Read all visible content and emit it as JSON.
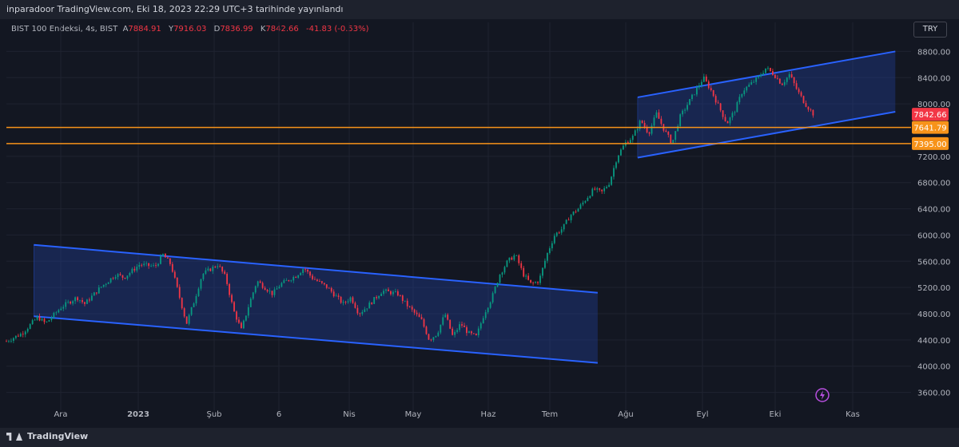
{
  "header": {
    "publish_text": "inparadoor TradingView.com, Eki 18, 2023 22:29 UTC+3 tarihinde yayınlandı"
  },
  "legend": {
    "symbol": "BIST 100 Endeksi, 4s, BIST",
    "open_label": "A",
    "open": "7884.91",
    "high_label": "Y",
    "high": "7916.03",
    "low_label": "D",
    "low": "7836.99",
    "close_label": "K",
    "close": "7842.66",
    "change": "-41.83 (-0.53%)"
  },
  "currency_button": "TRY",
  "footer": {
    "brand": "TradingView"
  },
  "colors": {
    "background": "#131722",
    "channel_line": "#2962ff",
    "channel_fill": "#1e3a8a",
    "level_line": "#f7931a",
    "up": "#089981",
    "down": "#f23645"
  },
  "icons": {
    "flash": "lightning-icon"
  },
  "chart_data": {
    "type": "candlestick",
    "ylim": [
      3400,
      9000
    ],
    "y_ticks": [
      "8800.00",
      "8400.00",
      "8000.00",
      "7200.00",
      "6800.00",
      "6400.00",
      "6000.00",
      "5600.00",
      "5200.00",
      "4800.00",
      "4400.00",
      "4000.00",
      "3600.00"
    ],
    "x_ticks": [
      "Ara",
      "2023",
      "Şub",
      "6",
      "Nis",
      "May",
      "Haz",
      "Tem",
      "Ağu",
      "Eyl",
      "Eki",
      "Kas"
    ],
    "price_labels": [
      {
        "text": "7842.66",
        "value": 7842.66,
        "color": "#f23645"
      },
      {
        "text": "7641.79",
        "value": 7641.79,
        "color": "#f7931a"
      },
      {
        "text": "7395.00",
        "value": 7395.0,
        "color": "#f7931a"
      }
    ],
    "horizontal_levels": [
      7641.79,
      7395.0
    ],
    "close_path": [
      [
        0,
        4380
      ],
      [
        2,
        4500
      ],
      [
        4,
        4750
      ],
      [
        5,
        4650
      ],
      [
        7,
        4900
      ],
      [
        9,
        5050
      ],
      [
        10,
        4950
      ],
      [
        12,
        5200
      ],
      [
        14,
        5400
      ],
      [
        15,
        5350
      ],
      [
        17,
        5550
      ],
      [
        19,
        5520
      ],
      [
        20,
        5700
      ],
      [
        21,
        5550
      ],
      [
        22,
        5100
      ],
      [
        23,
        4650
      ],
      [
        24,
        5000
      ],
      [
        25,
        5400
      ],
      [
        27,
        5550
      ],
      [
        28,
        5350
      ],
      [
        29,
        4850
      ],
      [
        30,
        4550
      ],
      [
        31,
        4950
      ],
      [
        32,
        5300
      ],
      [
        34,
        5100
      ],
      [
        35,
        5250
      ],
      [
        37,
        5380
      ],
      [
        38,
        5500
      ],
      [
        39,
        5350
      ],
      [
        41,
        5200
      ],
      [
        43,
        4950
      ],
      [
        44,
        5050
      ],
      [
        45,
        4800
      ],
      [
        46,
        4900
      ],
      [
        48,
        5150
      ],
      [
        50,
        5100
      ],
      [
        51,
        4950
      ],
      [
        53,
        4700
      ],
      [
        54,
        4400
      ],
      [
        55,
        4500
      ],
      [
        56,
        4800
      ],
      [
        57,
        4450
      ],
      [
        58,
        4650
      ],
      [
        59,
        4500
      ],
      [
        60,
        4450
      ],
      [
        61,
        4800
      ],
      [
        62,
        5050
      ],
      [
        63,
        5400
      ],
      [
        64,
        5600
      ],
      [
        65,
        5700
      ],
      [
        66,
        5400
      ],
      [
        67,
        5250
      ],
      [
        68,
        5300
      ],
      [
        69,
        5700
      ],
      [
        70,
        6000
      ],
      [
        71,
        6100
      ],
      [
        72,
        6300
      ],
      [
        73,
        6400
      ],
      [
        74,
        6550
      ],
      [
        75,
        6700
      ],
      [
        76,
        6650
      ],
      [
        77,
        6800
      ],
      [
        78,
        7200
      ],
      [
        79,
        7400
      ],
      [
        80,
        7500
      ],
      [
        81,
        7750
      ],
      [
        82,
        7550
      ],
      [
        83,
        7850
      ],
      [
        84,
        7600
      ],
      [
        85,
        7400
      ],
      [
        86,
        7800
      ],
      [
        87,
        8000
      ],
      [
        88,
        8200
      ],
      [
        89,
        8400
      ],
      [
        90,
        8200
      ],
      [
        91,
        7950
      ],
      [
        92,
        7700
      ],
      [
        93,
        7900
      ],
      [
        94,
        8200
      ],
      [
        95,
        8300
      ],
      [
        96,
        8400
      ],
      [
        97,
        8550
      ],
      [
        98,
        8450
      ],
      [
        99,
        8300
      ],
      [
        100,
        8450
      ],
      [
        101,
        8200
      ],
      [
        102,
        8000
      ],
      [
        103,
        7850
      ]
    ],
    "x_range": [
      0,
      115
    ],
    "channels": [
      {
        "name": "descending-channel",
        "top": [
          [
            3.5,
            5850
          ],
          [
            75.5,
            5120
          ]
        ],
        "bottom": [
          [
            3.5,
            4760
          ],
          [
            75.5,
            4050
          ]
        ]
      },
      {
        "name": "ascending-channel",
        "top": [
          [
            80.6,
            8100
          ],
          [
            113.5,
            8800
          ]
        ],
        "bottom": [
          [
            80.6,
            7180
          ],
          [
            113.5,
            7880
          ]
        ]
      }
    ]
  }
}
